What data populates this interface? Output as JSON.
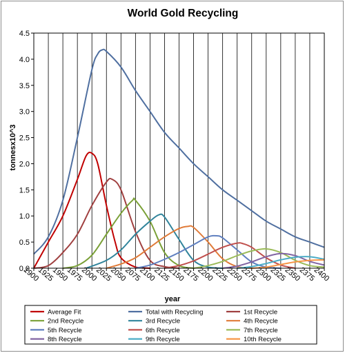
{
  "chart_data": {
    "type": "line",
    "title": "World Gold Recycling",
    "xlabel": "year",
    "ylabel": "tonnesx10^3",
    "xlim": [
      1900,
      2400
    ],
    "ylim": [
      0,
      4.5
    ],
    "x_ticks": [
      "1900",
      "1925",
      "1950",
      "1975",
      "2000",
      "2025",
      "2050",
      "2075",
      "2100",
      "2125",
      "2150",
      "2175",
      "2200",
      "2225",
      "2250",
      "2275",
      "2300",
      "2325",
      "2350",
      "2375",
      "2400"
    ],
    "y_ticks": [
      "0.0",
      "0.5",
      "1.0",
      "1.5",
      "2.0",
      "2.5",
      "3.0",
      "3.5",
      "4.0",
      "4.5"
    ],
    "grid": "vertical",
    "legend_position": "bottom",
    "series": [
      {
        "name": "Average Fit",
        "color": "#c00000",
        "points": [
          [
            1900,
            0
          ],
          [
            1925,
            0.5
          ],
          [
            1950,
            1.0
          ],
          [
            1975,
            1.7
          ],
          [
            1990,
            2.15
          ],
          [
            2000,
            2.2
          ],
          [
            2010,
            2.0
          ],
          [
            2025,
            1.2
          ],
          [
            2040,
            0.5
          ],
          [
            2050,
            0.2
          ],
          [
            2075,
            0.02
          ],
          [
            2100,
            0
          ]
        ]
      },
      {
        "name": "Total with Recycling",
        "color": "#4f6fa0",
        "points": [
          [
            1900,
            0.27
          ],
          [
            1925,
            0.6
          ],
          [
            1950,
            1.3
          ],
          [
            1975,
            2.5
          ],
          [
            2000,
            3.8
          ],
          [
            2010,
            4.1
          ],
          [
            2018,
            4.18
          ],
          [
            2025,
            4.15
          ],
          [
            2050,
            3.85
          ],
          [
            2075,
            3.4
          ],
          [
            2100,
            3.0
          ],
          [
            2125,
            2.6
          ],
          [
            2150,
            2.3
          ],
          [
            2175,
            2.0
          ],
          [
            2200,
            1.75
          ],
          [
            2225,
            1.5
          ],
          [
            2250,
            1.3
          ],
          [
            2275,
            1.1
          ],
          [
            2300,
            0.9
          ],
          [
            2325,
            0.75
          ],
          [
            2350,
            0.6
          ],
          [
            2375,
            0.5
          ],
          [
            2400,
            0.4
          ]
        ]
      },
      {
        "name": "1st Recycle",
        "color": "#a04040",
        "points": [
          [
            1900,
            0
          ],
          [
            1925,
            0.05
          ],
          [
            1950,
            0.3
          ],
          [
            1975,
            0.65
          ],
          [
            2000,
            1.2
          ],
          [
            2025,
            1.65
          ],
          [
            2035,
            1.7
          ],
          [
            2050,
            1.5
          ],
          [
            2075,
            0.7
          ],
          [
            2100,
            0.15
          ],
          [
            2125,
            0.03
          ],
          [
            2150,
            0
          ]
        ]
      },
      {
        "name": "2nd Recycle",
        "color": "#7aa037",
        "points": [
          [
            1950,
            0
          ],
          [
            1975,
            0.05
          ],
          [
            2000,
            0.25
          ],
          [
            2025,
            0.65
          ],
          [
            2050,
            1.05
          ],
          [
            2070,
            1.3
          ],
          [
            2075,
            1.3
          ],
          [
            2100,
            0.9
          ],
          [
            2125,
            0.3
          ],
          [
            2150,
            0.05
          ],
          [
            2175,
            0
          ]
        ]
      },
      {
        "name": "3rd Recycle",
        "color": "#31849b",
        "points": [
          [
            1990,
            0
          ],
          [
            2025,
            0.15
          ],
          [
            2050,
            0.35
          ],
          [
            2075,
            0.65
          ],
          [
            2100,
            0.9
          ],
          [
            2115,
            1.02
          ],
          [
            2125,
            0.98
          ],
          [
            2150,
            0.55
          ],
          [
            2175,
            0.15
          ],
          [
            2200,
            0.02
          ],
          [
            2225,
            0
          ]
        ]
      },
      {
        "name": "4th Recycle",
        "color": "#e07b39",
        "points": [
          [
            2025,
            0
          ],
          [
            2050,
            0.08
          ],
          [
            2075,
            0.2
          ],
          [
            2100,
            0.4
          ],
          [
            2125,
            0.6
          ],
          [
            2150,
            0.76
          ],
          [
            2165,
            0.8
          ],
          [
            2175,
            0.78
          ],
          [
            2200,
            0.5
          ],
          [
            2225,
            0.18
          ],
          [
            2250,
            0.03
          ],
          [
            2275,
            0
          ]
        ]
      },
      {
        "name": "5th Recycle",
        "color": "#5f7fbf",
        "points": [
          [
            2075,
            0
          ],
          [
            2100,
            0.06
          ],
          [
            2125,
            0.17
          ],
          [
            2150,
            0.3
          ],
          [
            2175,
            0.45
          ],
          [
            2200,
            0.6
          ],
          [
            2215,
            0.62
          ],
          [
            2225,
            0.58
          ],
          [
            2250,
            0.35
          ],
          [
            2275,
            0.12
          ],
          [
            2300,
            0.02
          ],
          [
            2325,
            0
          ]
        ]
      },
      {
        "name": "6th Recycle",
        "color": "#c0504d",
        "points": [
          [
            2125,
            0
          ],
          [
            2150,
            0.05
          ],
          [
            2175,
            0.14
          ],
          [
            2200,
            0.27
          ],
          [
            2225,
            0.4
          ],
          [
            2250,
            0.48
          ],
          [
            2260,
            0.47
          ],
          [
            2275,
            0.4
          ],
          [
            2300,
            0.2
          ],
          [
            2325,
            0.06
          ],
          [
            2350,
            0
          ]
        ]
      },
      {
        "name": "7th Recycle",
        "color": "#9bbb59",
        "points": [
          [
            2175,
            0
          ],
          [
            2200,
            0.05
          ],
          [
            2225,
            0.13
          ],
          [
            2250,
            0.24
          ],
          [
            2275,
            0.33
          ],
          [
            2300,
            0.37
          ],
          [
            2325,
            0.3
          ],
          [
            2350,
            0.15
          ],
          [
            2375,
            0.05
          ],
          [
            2400,
            0.02
          ]
        ]
      },
      {
        "name": "8th Recycle",
        "color": "#8064a2",
        "points": [
          [
            2225,
            0
          ],
          [
            2250,
            0.04
          ],
          [
            2275,
            0.12
          ],
          [
            2300,
            0.22
          ],
          [
            2325,
            0.28
          ],
          [
            2350,
            0.24
          ],
          [
            2375,
            0.13
          ],
          [
            2400,
            0.06
          ]
        ]
      },
      {
        "name": "9th Recycle",
        "color": "#4bacc6",
        "points": [
          [
            2250,
            0
          ],
          [
            2275,
            0.03
          ],
          [
            2300,
            0.09
          ],
          [
            2325,
            0.16
          ],
          [
            2350,
            0.21
          ],
          [
            2375,
            0.22
          ],
          [
            2400,
            0.17
          ]
        ]
      },
      {
        "name": "10th Recycle",
        "color": "#f79646",
        "points": [
          [
            2275,
            0
          ],
          [
            2300,
            0.02
          ],
          [
            2325,
            0.07
          ],
          [
            2350,
            0.12
          ],
          [
            2375,
            0.15
          ],
          [
            2400,
            0.16
          ]
        ]
      }
    ]
  }
}
